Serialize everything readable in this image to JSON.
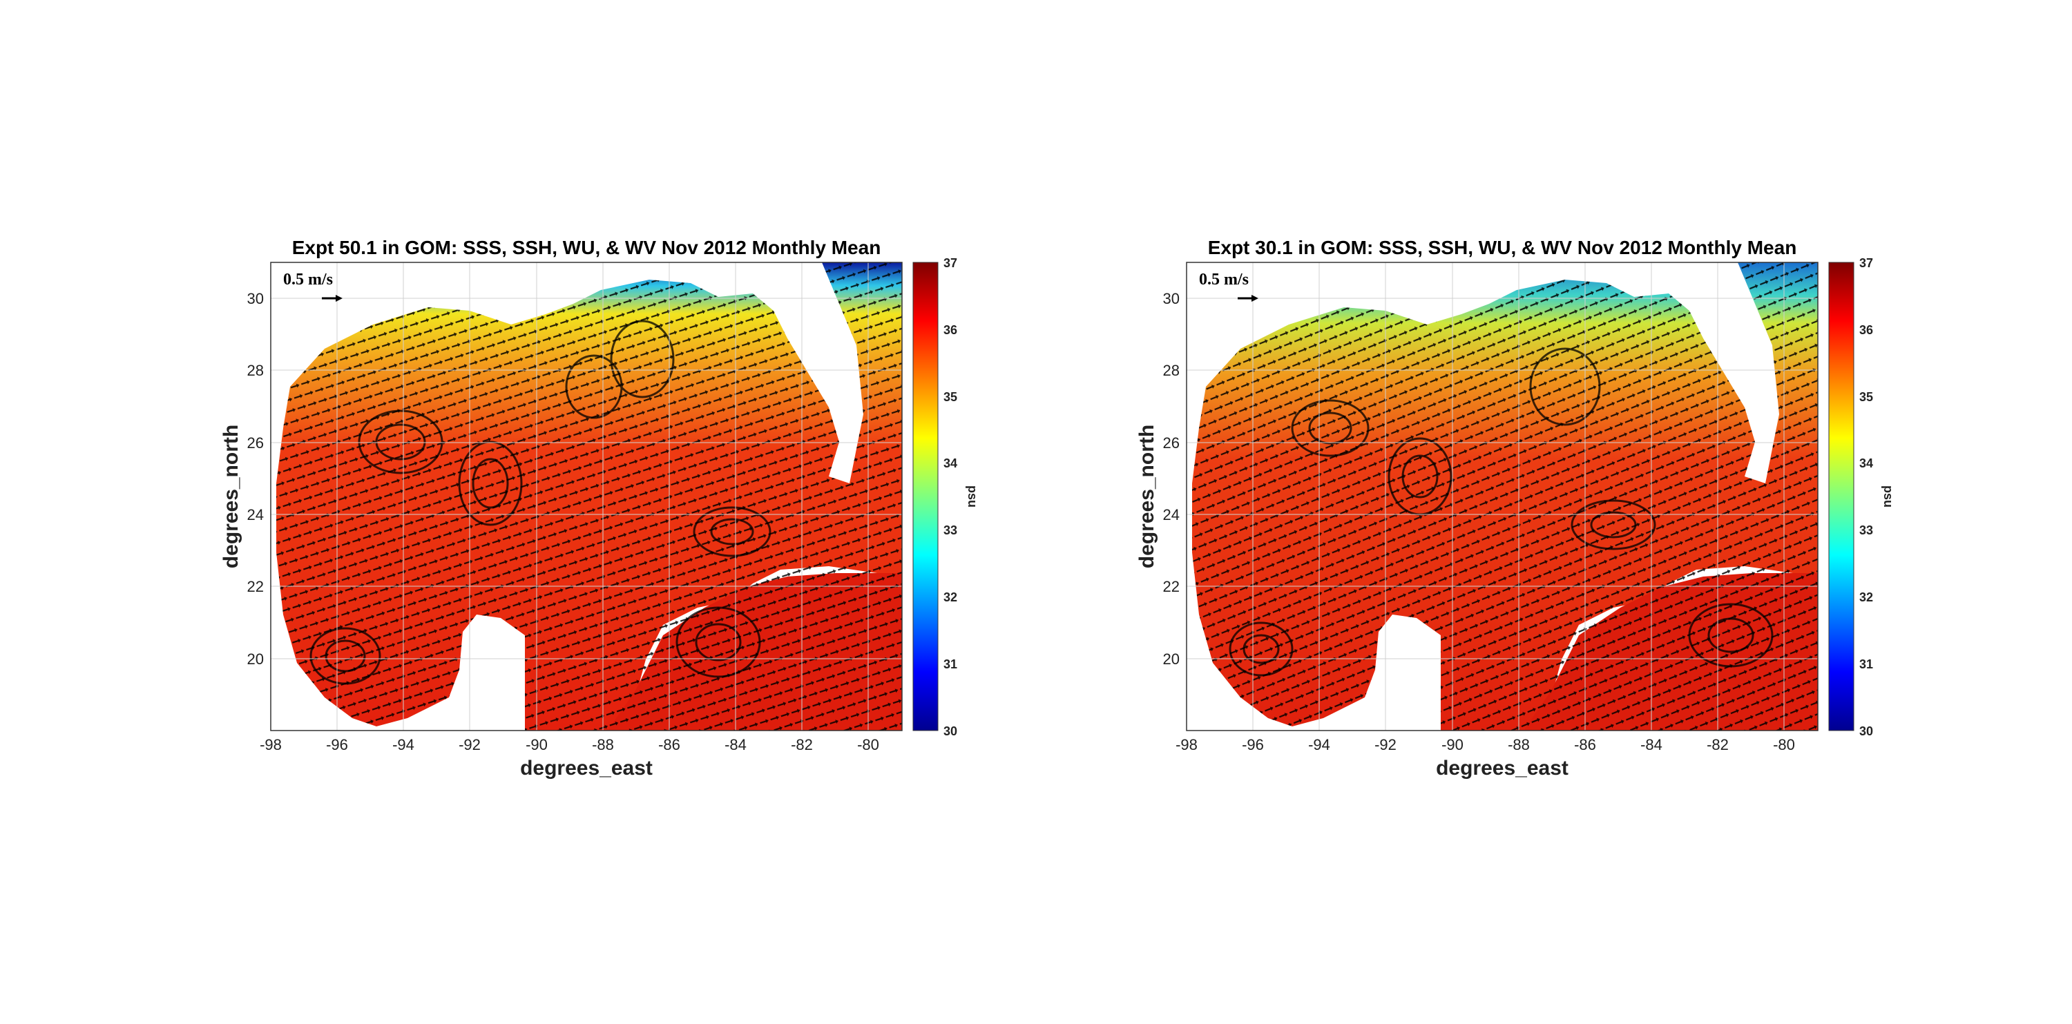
{
  "panels": [
    {
      "title": "Expt 50.1 in GOM: SSS, SSH, WU, & WV Nov 2012 Monthly Mean",
      "xlabel": "degrees_east",
      "ylabel": "degrees_north",
      "colorbar_label": "psu",
      "scale_arrow_label": "0.5 m/s"
    },
    {
      "title": "Expt 30.1 in GOM: SSS, SSH, WU, & WV Nov 2012 Monthly Mean",
      "xlabel": "degrees_east",
      "ylabel": "degrees_north",
      "colorbar_label": "psu",
      "scale_arrow_label": "0.5 m/s"
    }
  ],
  "axes": {
    "xlim": [
      -98,
      -79
    ],
    "ylim": [
      18,
      31
    ],
    "xticks": [
      "-98",
      "-96",
      "-94",
      "-92",
      "-90",
      "-88",
      "-86",
      "-84",
      "-82",
      "-80"
    ],
    "yticks": [
      "20",
      "22",
      "24",
      "26",
      "28",
      "30"
    ],
    "grid": true
  },
  "colorbar": {
    "range": [
      30,
      37
    ],
    "ticks": [
      "37",
      "36",
      "35",
      "34",
      "33",
      "32",
      "31",
      "30"
    ],
    "colormap": "jet"
  },
  "colors": {
    "land": "#ffffff",
    "ocean_dominant": "#e8220f",
    "coastal_fresh": "#35c7e0",
    "arrows": "#000000"
  }
}
